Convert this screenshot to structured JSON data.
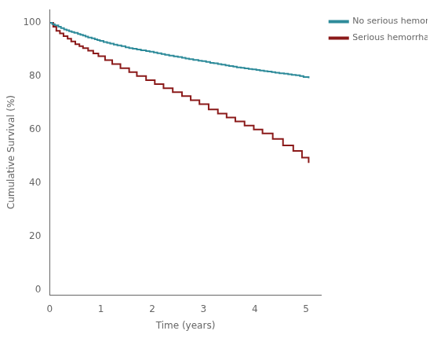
{
  "chart_data": {
    "type": "step",
    "xlabel": "Time (years)",
    "ylabel": "Cumulative Survival (%)",
    "xlim": [
      0,
      5.3
    ],
    "ylim": [
      -2,
      105
    ],
    "xticks": [
      0,
      1,
      2,
      3,
      4,
      5
    ],
    "yticks": [
      0,
      20,
      40,
      60,
      80,
      100
    ],
    "grid": false,
    "legend": "right",
    "series": [
      {
        "name": "No serious hemorrhage",
        "color": "#2E8B9A",
        "x": [
          0,
          0.05,
          0.1,
          0.17,
          0.22,
          0.28,
          0.33,
          0.38,
          0.43,
          0.48,
          0.55,
          0.6,
          0.65,
          0.7,
          0.75,
          0.82,
          0.88,
          0.93,
          0.98,
          1.05,
          1.12,
          1.18,
          1.25,
          1.32,
          1.4,
          1.48,
          1.55,
          1.62,
          1.7,
          1.78,
          1.88,
          1.95,
          2.03,
          2.1,
          2.18,
          2.25,
          2.33,
          2.42,
          2.5,
          2.58,
          2.65,
          2.72,
          2.8,
          2.9,
          2.97,
          3.05,
          3.13,
          3.2,
          3.28,
          3.35,
          3.43,
          3.5,
          3.58,
          3.65,
          3.73,
          3.8,
          3.88,
          3.95,
          4.03,
          4.1,
          4.18,
          4.25,
          4.33,
          4.4,
          4.48,
          4.57,
          4.65,
          4.72,
          4.8,
          4.88,
          4.95,
          5.05
        ],
        "values": [
          100,
          99.5,
          99.0,
          98.5,
          98.0,
          97.5,
          97.2,
          96.8,
          96.5,
          96.2,
          95.8,
          95.5,
          95.2,
          94.8,
          94.5,
          94.2,
          93.8,
          93.5,
          93.2,
          92.8,
          92.5,
          92.2,
          91.8,
          91.5,
          91.2,
          90.8,
          90.5,
          90.3,
          90.0,
          89.7,
          89.4,
          89.2,
          88.9,
          88.6,
          88.3,
          88.0,
          87.7,
          87.4,
          87.2,
          86.9,
          86.6,
          86.4,
          86.1,
          85.8,
          85.6,
          85.3,
          85.0,
          84.8,
          84.5,
          84.3,
          84.0,
          83.8,
          83.6,
          83.3,
          83.1,
          82.9,
          82.7,
          82.5,
          82.3,
          82.1,
          81.9,
          81.7,
          81.5,
          81.3,
          81.1,
          80.9,
          80.7,
          80.5,
          80.3,
          80.0,
          79.7,
          79.2
        ]
      },
      {
        "name": "Serious hemorrhage",
        "color": "#8B1A1A",
        "x": [
          0,
          0.07,
          0.13,
          0.2,
          0.27,
          0.35,
          0.42,
          0.5,
          0.58,
          0.65,
          0.75,
          0.85,
          0.95,
          1.08,
          1.22,
          1.38,
          1.55,
          1.7,
          1.88,
          2.05,
          2.22,
          2.4,
          2.58,
          2.75,
          2.92,
          3.1,
          3.28,
          3.45,
          3.62,
          3.8,
          3.98,
          4.15,
          4.35,
          4.55,
          4.75,
          4.92,
          5.05
        ],
        "values": [
          100,
          98.5,
          97.0,
          96.0,
          95.0,
          94.0,
          93.0,
          92.0,
          91.2,
          90.5,
          89.5,
          88.5,
          87.5,
          86.0,
          84.5,
          83.0,
          81.5,
          80.0,
          78.5,
          77.0,
          75.5,
          74.0,
          72.5,
          71.0,
          69.5,
          67.5,
          66.0,
          64.5,
          63.0,
          61.5,
          60.0,
          58.5,
          56.5,
          54.0,
          52.0,
          49.5,
          47.5
        ]
      }
    ]
  }
}
